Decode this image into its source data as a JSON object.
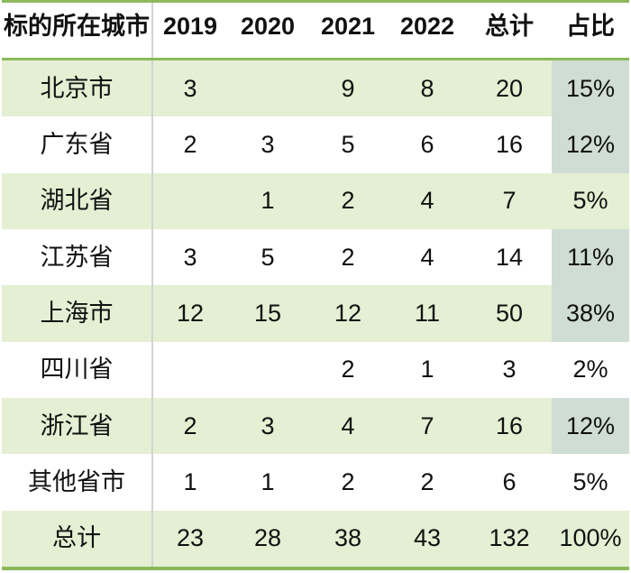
{
  "table": {
    "corner_header": "标的所在城市",
    "columns": [
      "2019",
      "2020",
      "2021",
      "2022",
      "总计",
      "占比"
    ],
    "rows": [
      {
        "label": "北京市",
        "values": [
          "3",
          "",
          "9",
          "8",
          "20"
        ],
        "pct": "15%",
        "band": "green",
        "pct_highlight": true
      },
      {
        "label": "广东省",
        "values": [
          "2",
          "3",
          "5",
          "6",
          "16"
        ],
        "pct": "12%",
        "band": "white",
        "pct_highlight": true
      },
      {
        "label": "湖北省",
        "values": [
          "",
          "1",
          "2",
          "4",
          "7"
        ],
        "pct": "5%",
        "band": "green",
        "pct_highlight": false
      },
      {
        "label": "江苏省",
        "values": [
          "3",
          "5",
          "2",
          "4",
          "14"
        ],
        "pct": "11%",
        "band": "white",
        "pct_highlight": true
      },
      {
        "label": "上海市",
        "values": [
          "12",
          "15",
          "12",
          "11",
          "50"
        ],
        "pct": "38%",
        "band": "green",
        "pct_highlight": true
      },
      {
        "label": "四川省",
        "values": [
          "",
          "",
          "2",
          "1",
          "3"
        ],
        "pct": "2%",
        "band": "white",
        "pct_highlight": false
      },
      {
        "label": "浙江省",
        "values": [
          "2",
          "3",
          "4",
          "7",
          "16"
        ],
        "pct": "12%",
        "band": "green",
        "pct_highlight": true
      },
      {
        "label": "其他省市",
        "values": [
          "1",
          "1",
          "2",
          "2",
          "6"
        ],
        "pct": "5%",
        "band": "white",
        "pct_highlight": false
      },
      {
        "label": "总计",
        "values": [
          "23",
          "28",
          "38",
          "43",
          "132"
        ],
        "pct": "100%",
        "band": "green",
        "pct_highlight": false
      }
    ]
  },
  "colors": {
    "band_green": "#e4efd3",
    "highlight": "#cfddd4",
    "border_green": "#8bb95c",
    "divider_gray": "#d3d3d3",
    "text": "#111111"
  },
  "chart_data": {
    "type": "table",
    "columns": [
      "标的所在城市",
      "2019",
      "2020",
      "2021",
      "2022",
      "总计",
      "占比"
    ],
    "rows": [
      [
        "北京市",
        3,
        null,
        9,
        8,
        20,
        "15%"
      ],
      [
        "广东省",
        2,
        3,
        5,
        6,
        16,
        "12%"
      ],
      [
        "湖北省",
        null,
        1,
        2,
        4,
        7,
        "5%"
      ],
      [
        "江苏省",
        3,
        5,
        2,
        4,
        14,
        "11%"
      ],
      [
        "上海市",
        12,
        15,
        12,
        11,
        50,
        "38%"
      ],
      [
        "四川省",
        null,
        null,
        2,
        1,
        3,
        "2%"
      ],
      [
        "浙江省",
        2,
        3,
        4,
        7,
        16,
        "12%"
      ],
      [
        "其他省市",
        1,
        1,
        2,
        2,
        6,
        "5%"
      ],
      [
        "总计",
        23,
        28,
        38,
        43,
        132,
        "100%"
      ]
    ]
  }
}
